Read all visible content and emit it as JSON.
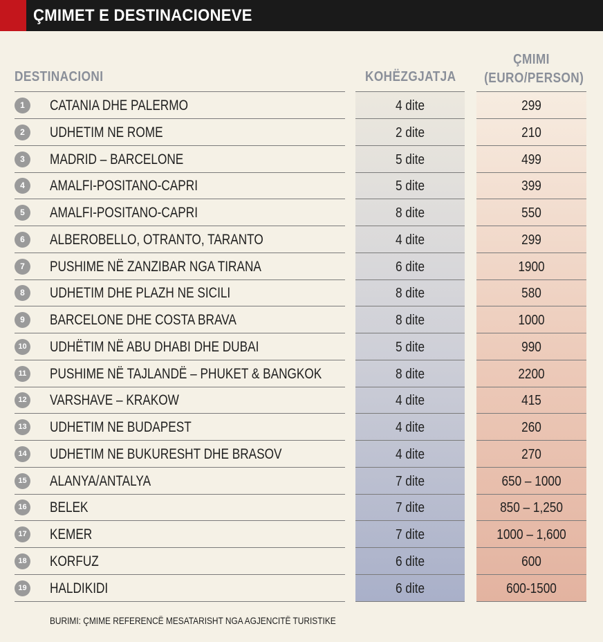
{
  "title": "ÇMIMET E DESTINACIONEVE",
  "headers": {
    "destination": "DESTINACIONI",
    "duration": "KOHËZGJATJA",
    "price_line1": "ÇMIMI",
    "price_line2": "(EURO/PERSON)"
  },
  "rows": [
    {
      "num": "1",
      "name": "CATANIA DHE PALERMO",
      "duration": "4 dite",
      "price": "299"
    },
    {
      "num": "2",
      "name": "UDHETIM NE ROME",
      "duration": "2 dite",
      "price": "210"
    },
    {
      "num": "3",
      "name": "MADRID – BARCELONE",
      "duration": "5 dite",
      "price": "499"
    },
    {
      "num": "4",
      "name": "AMALFI-POSITANO-CAPRI",
      "duration": "5 dite",
      "price": "399"
    },
    {
      "num": "5",
      "name": "AMALFI-POSITANO-CAPRI",
      "duration": "8 dite",
      "price": "550"
    },
    {
      "num": "6",
      "name": "ALBEROBELLO, OTRANTO, TARANTO",
      "duration": "4 dite",
      "price": "299"
    },
    {
      "num": "7",
      "name": "PUSHIME NË ZANZIBAR NGA TIRANA",
      "duration": "6 dite",
      "price": "1900"
    },
    {
      "num": "8",
      "name": "UDHETIM DHE PLAZH NE SICILI",
      "duration": "8 dite",
      "price": "580"
    },
    {
      "num": "9",
      "name": "BARCELONE DHE COSTA BRAVA",
      "duration": "8 dite",
      "price": "1000"
    },
    {
      "num": "10",
      "name": "UDHËTIM NË ABU DHABI DHE DUBAI",
      "duration": "5 dite",
      "price": "990"
    },
    {
      "num": "11",
      "name": "PUSHIME NË TAJLANDË – PHUKET & BANGKOK",
      "duration": "8 dite",
      "price": "2200"
    },
    {
      "num": "12",
      "name": "VARSHAVE – KRAKOW",
      "duration": "4 dite",
      "price": "415"
    },
    {
      "num": "13",
      "name": "UDHETIM NE BUDAPEST",
      "duration": "4 dite",
      "price": "260"
    },
    {
      "num": "14",
      "name": "UDHETIM NE BUKURESHT DHE BRASOV",
      "duration": "4 dite",
      "price": "270"
    },
    {
      "num": "15",
      "name": "ALANYA/ANTALYA",
      "duration": "7 dite",
      "price": "650 – 1000"
    },
    {
      "num": "16",
      "name": "BELEK",
      "duration": "7 dite",
      "price": "850 – 1,250"
    },
    {
      "num": "17",
      "name": "KEMER",
      "duration": "7 dite",
      "price": "1000 – 1,600"
    },
    {
      "num": "18",
      "name": "KORFUZ",
      "duration": "6 dite",
      "price": "600"
    },
    {
      "num": "19",
      "name": "HALDIKIDI",
      "duration": "6 dite",
      "price": "600-1500"
    }
  ],
  "source": "BURIMI: ÇMIME REFERENCË MESATARISHT NGA AGJENCITË TURISTIKE",
  "colors": {
    "title_bar": "#1a1a1a",
    "accent": "#c4161c",
    "background": "#f5f1e6",
    "header_text": "#8a8f99"
  }
}
